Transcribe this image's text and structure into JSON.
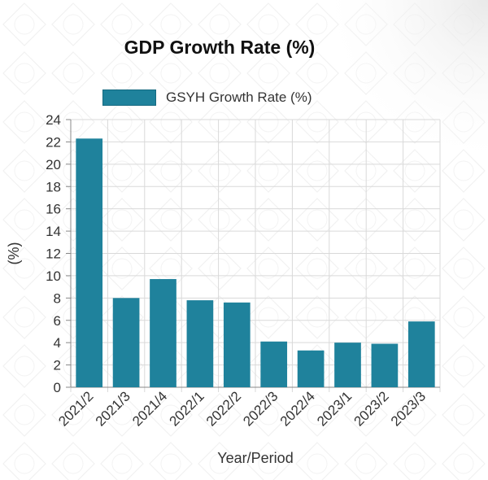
{
  "colors": {
    "bar": "#1f829c",
    "grid": "#d9d9d9",
    "axis": "#888888",
    "text": "#333333"
  },
  "chart_data": {
    "type": "bar",
    "title": "GDP Growth Rate (%)",
    "xlabel": "Year/Period",
    "ylabel": "(%)",
    "ylim": [
      0,
      24
    ],
    "yticks": [
      0,
      2,
      4,
      6,
      8,
      10,
      12,
      14,
      16,
      18,
      20,
      22,
      24
    ],
    "grid": true,
    "legend_position": "top",
    "categories": [
      "2021/2",
      "2021/3",
      "2021/4",
      "2022/1",
      "2022/2",
      "2022/3",
      "2022/4",
      "2023/1",
      "2023/2",
      "2023/3"
    ],
    "series": [
      {
        "name": "GSYH Growth Rate (%)",
        "values": [
          22.3,
          8.0,
          9.7,
          7.8,
          7.6,
          4.1,
          3.3,
          4.0,
          3.9,
          5.9
        ]
      }
    ]
  }
}
